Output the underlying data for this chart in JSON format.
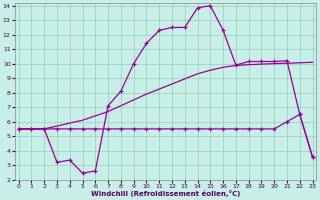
{
  "xlabel": "Windchill (Refroidissement éolien,°C)",
  "bg_color": "#c8eee8",
  "grid_color": "#99ccbb",
  "line_color": "#990099",
  "yticks": [
    2,
    3,
    4,
    5,
    6,
    7,
    8,
    9,
    10,
    11,
    12,
    13,
    14
  ],
  "xticks": [
    0,
    1,
    2,
    3,
    4,
    5,
    6,
    7,
    8,
    9,
    10,
    11,
    12,
    13,
    14,
    15,
    16,
    17,
    18,
    19,
    20,
    21,
    22,
    23
  ],
  "line1_x": [
    0,
    1,
    2,
    3,
    4,
    5,
    6,
    7,
    8,
    9,
    10,
    11,
    12,
    13,
    14,
    15,
    16,
    17,
    18,
    19,
    20,
    21,
    22,
    23
  ],
  "line1_y": [
    5.5,
    5.5,
    5.5,
    3.2,
    3.35,
    2.45,
    2.6,
    7.1,
    8.1,
    10.0,
    11.4,
    12.3,
    12.5,
    12.5,
    13.85,
    14.0,
    12.3,
    9.9,
    10.15,
    10.15,
    10.15,
    10.2,
    6.5,
    3.55
  ],
  "line2_x": [
    0,
    1,
    2,
    3,
    4,
    5,
    6,
    7,
    8,
    9,
    10,
    11,
    12,
    13,
    14,
    15,
    16,
    17,
    18,
    19,
    20,
    21,
    22,
    23
  ],
  "line2_y": [
    5.5,
    5.5,
    5.5,
    5.7,
    5.9,
    6.1,
    6.4,
    6.7,
    7.1,
    7.5,
    7.9,
    8.25,
    8.6,
    8.95,
    9.3,
    9.55,
    9.75,
    9.88,
    9.93,
    9.97,
    10.0,
    10.03,
    10.06,
    10.1
  ],
  "line3_x": [
    0,
    1,
    2,
    3,
    4,
    5,
    6,
    7,
    8,
    9,
    10,
    11,
    12,
    13,
    14,
    15,
    16,
    17,
    18,
    19,
    20,
    21,
    22,
    23
  ],
  "line3_y": [
    5.5,
    5.5,
    5.5,
    5.5,
    5.5,
    5.5,
    5.5,
    5.5,
    5.5,
    5.5,
    5.5,
    5.5,
    5.5,
    5.5,
    5.5,
    5.5,
    5.5,
    5.5,
    5.5,
    5.5,
    5.5,
    6.0,
    6.5,
    3.55
  ]
}
